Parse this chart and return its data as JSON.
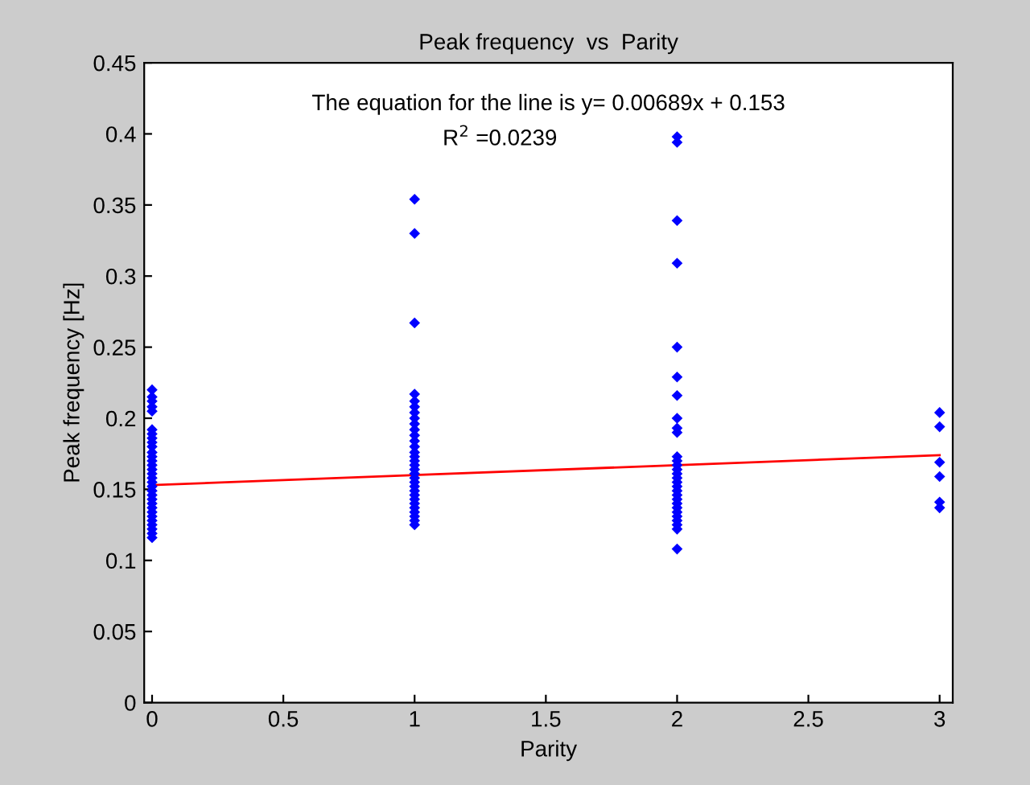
{
  "chart_data": {
    "type": "scatter",
    "title": "Peak frequency  vs  Parity",
    "xlabel": "Parity",
    "ylabel": "Peak frequency [Hz]",
    "annotations": [
      "The equation for the line is y= 0.00689x + 0.153",
      "R$^{2}$ =0.0239"
    ],
    "marker": "diamond",
    "grid": false,
    "legend": false,
    "xlim": [
      -0.03,
      3.05
    ],
    "xticks": [
      0,
      0.5,
      1,
      1.5,
      2,
      2.5,
      3
    ],
    "ylim": [
      0,
      0.45
    ],
    "yticks": [
      0,
      0.05,
      0.1,
      0.15,
      0.2,
      0.25,
      0.3,
      0.35,
      0.4,
      0.45
    ],
    "series": [
      {
        "color": "#0000ff",
        "x": [
          0,
          0,
          0,
          0,
          0,
          0,
          0,
          0,
          0,
          0,
          0,
          0,
          0,
          0,
          0,
          0,
          0,
          0,
          0,
          0,
          0,
          0,
          0,
          0,
          0,
          0,
          0,
          0,
          0,
          0,
          0
        ],
        "values": [
          0.116,
          0.119,
          0.122,
          0.125,
          0.128,
          0.131,
          0.134,
          0.137,
          0.14,
          0.143,
          0.146,
          0.149,
          0.152,
          0.155,
          0.158,
          0.161,
          0.164,
          0.167,
          0.17,
          0.173,
          0.176,
          0.18,
          0.183,
          0.186,
          0.189,
          0.192,
          0.205,
          0.208,
          0.212,
          0.215,
          0.22
        ]
      },
      {
        "color": "#0000ff",
        "x": [
          1,
          1,
          1,
          1,
          1,
          1,
          1,
          1,
          1,
          1,
          1,
          1,
          1,
          1,
          1,
          1,
          1,
          1,
          1,
          1,
          1,
          1,
          1,
          1,
          1,
          1,
          1,
          1,
          1,
          1,
          1
        ],
        "values": [
          0.125,
          0.128,
          0.131,
          0.134,
          0.137,
          0.14,
          0.143,
          0.146,
          0.149,
          0.152,
          0.155,
          0.158,
          0.161,
          0.164,
          0.167,
          0.17,
          0.173,
          0.176,
          0.18,
          0.184,
          0.188,
          0.192,
          0.196,
          0.2,
          0.204,
          0.208,
          0.212,
          0.217,
          0.267,
          0.33,
          0.354
        ]
      },
      {
        "color": "#0000ff",
        "x": [
          2,
          2,
          2,
          2,
          2,
          2,
          2,
          2,
          2,
          2,
          2,
          2,
          2,
          2,
          2,
          2,
          2,
          2,
          2,
          2,
          2,
          2,
          2,
          2,
          2,
          2,
          2,
          2,
          2
        ],
        "values": [
          0.108,
          0.122,
          0.125,
          0.128,
          0.131,
          0.134,
          0.137,
          0.14,
          0.143,
          0.146,
          0.149,
          0.152,
          0.155,
          0.158,
          0.161,
          0.164,
          0.167,
          0.17,
          0.173,
          0.19,
          0.193,
          0.2,
          0.216,
          0.229,
          0.25,
          0.309,
          0.339,
          0.394,
          0.398
        ]
      },
      {
        "color": "#0000ff",
        "x": [
          3,
          3,
          3,
          3,
          3,
          3
        ],
        "values": [
          0.137,
          0.141,
          0.159,
          0.169,
          0.194,
          0.204
        ]
      },
      {
        "type": "line",
        "color": "#ff0000",
        "marker": "none",
        "x": [
          0,
          3
        ],
        "values": [
          0.153,
          0.174
        ]
      }
    ]
  }
}
